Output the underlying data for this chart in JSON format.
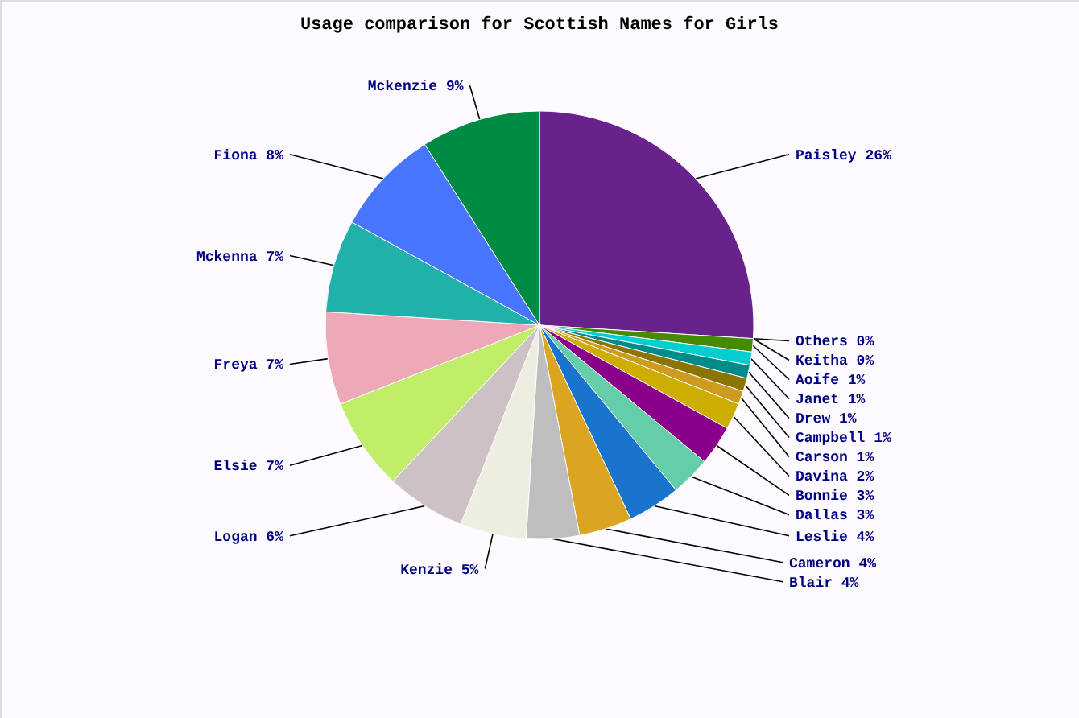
{
  "chart_data": {
    "type": "pie",
    "title": "Usage comparison for Scottish Names for Girls",
    "categories": [
      "Paisley",
      "Others",
      "Keitha",
      "Aoife",
      "Janet",
      "Drew",
      "Campbell",
      "Carson",
      "Davina",
      "Bonnie",
      "Dallas",
      "Leslie",
      "Cameron",
      "Blair",
      "Kenzie",
      "Logan",
      "Elsie",
      "Freya",
      "Mckenna",
      "Fiona",
      "Mckenzie"
    ],
    "values": [
      26,
      0,
      0,
      1,
      1,
      1,
      1,
      1,
      2,
      3,
      3,
      4,
      4,
      4,
      5,
      6,
      7,
      7,
      7,
      8,
      9
    ],
    "value_labels": [
      "26%",
      "0%",
      "0%",
      "1%",
      "1%",
      "1%",
      "1%",
      "1%",
      "2%",
      "3%",
      "3%",
      "4%",
      "4%",
      "4%",
      "5%",
      "6%",
      "7%",
      "7%",
      "7%",
      "8%",
      "9%"
    ],
    "colors": [
      "#68228b",
      "#8db6cd",
      "#76ee00",
      "#458b00",
      "#00ced1",
      "#008b8b",
      "#8b7500",
      "#cd9b1d",
      "#cdad00",
      "#8b008b",
      "#66cdaa",
      "#1874cd",
      "#daa520",
      "#bebebe",
      "#eeeee0",
      "#cdc1c5",
      "#c0ee68",
      "#eea9b8",
      "#20b2aa",
      "#4876ff",
      "#008b45"
    ]
  }
}
